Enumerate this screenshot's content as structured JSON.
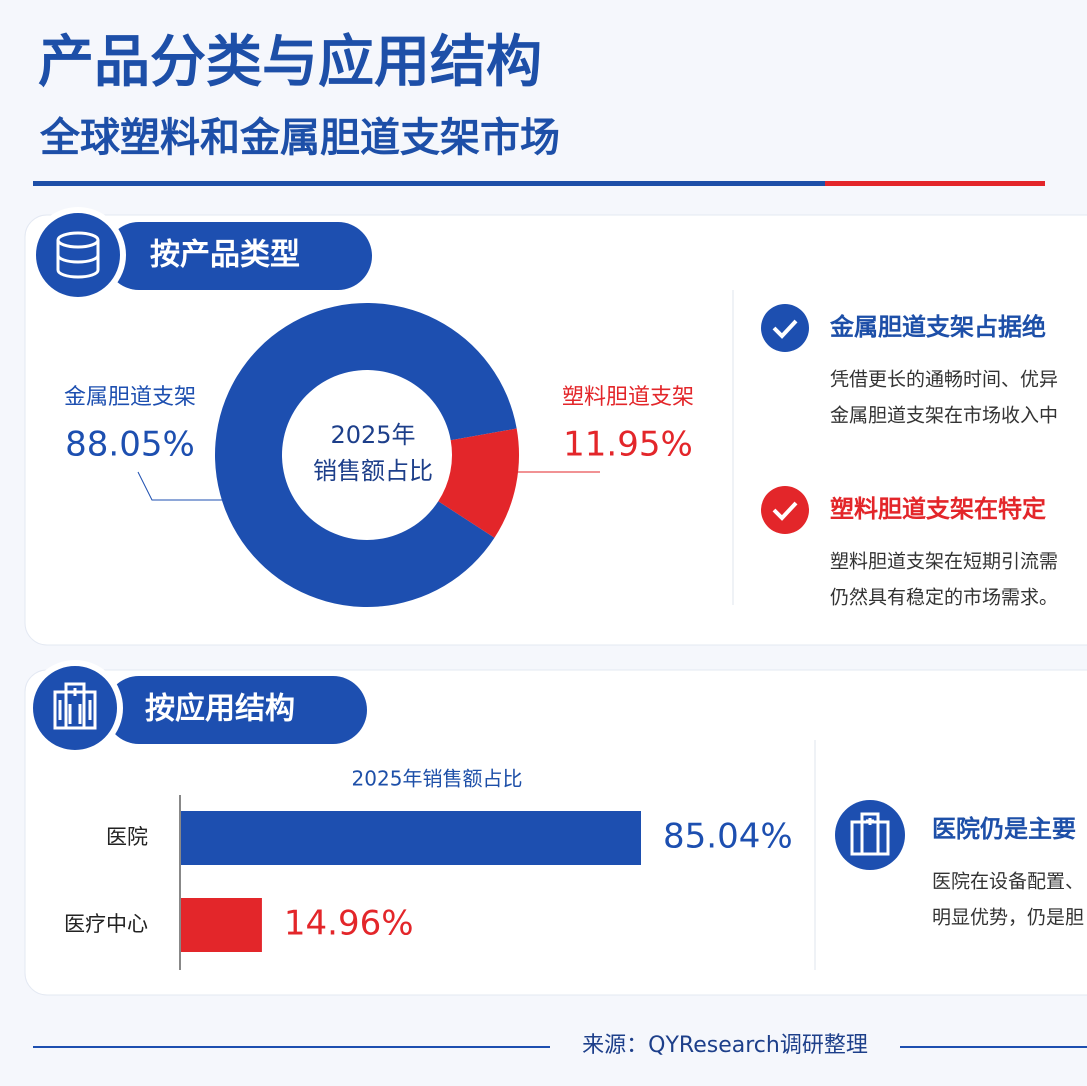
{
  "header": {
    "title": "产品分类与应用结构",
    "subtitle": "全球塑料和金属胆道支架市场"
  },
  "sections": [
    {
      "heading": "按产品类型",
      "notes": [
        {
          "title": "金属胆道支架占据绝",
          "lines": [
            "凭借更长的通畅时间、优异",
            "金属胆道支架在市场收入中"
          ]
        },
        {
          "title": "塑料胆道支架在特定",
          "lines": [
            "塑料胆道支架在短期引流需",
            "仍然具有稳定的市场需求。"
          ]
        }
      ]
    },
    {
      "heading": "按应用结构",
      "notes": [
        {
          "title": "医院仍是主要",
          "lines": [
            "医院在设备配置、",
            "明显优势，仍是胆"
          ]
        }
      ]
    }
  ],
  "chart_data": [
    {
      "type": "donut",
      "center_label": [
        "2025年",
        "销售额占比"
      ],
      "categories": [
        "金属胆道支架",
        "塑料胆道支架"
      ],
      "values": [
        88.05,
        11.95
      ],
      "value_labels": [
        "88.05%",
        "11.95%"
      ],
      "colors": [
        "#1d4fb0",
        "#e3262a"
      ]
    },
    {
      "type": "bar",
      "orientation": "horizontal",
      "title": "2025年销售额占比",
      "categories": [
        "医院",
        "医疗中心"
      ],
      "values": [
        85.04,
        14.96
      ],
      "value_labels": [
        "85.04%",
        "14.96%"
      ],
      "colors": [
        "#1d4fb0",
        "#e3262a"
      ]
    }
  ],
  "footer": {
    "source": "来源：QYResearch调研整理"
  }
}
